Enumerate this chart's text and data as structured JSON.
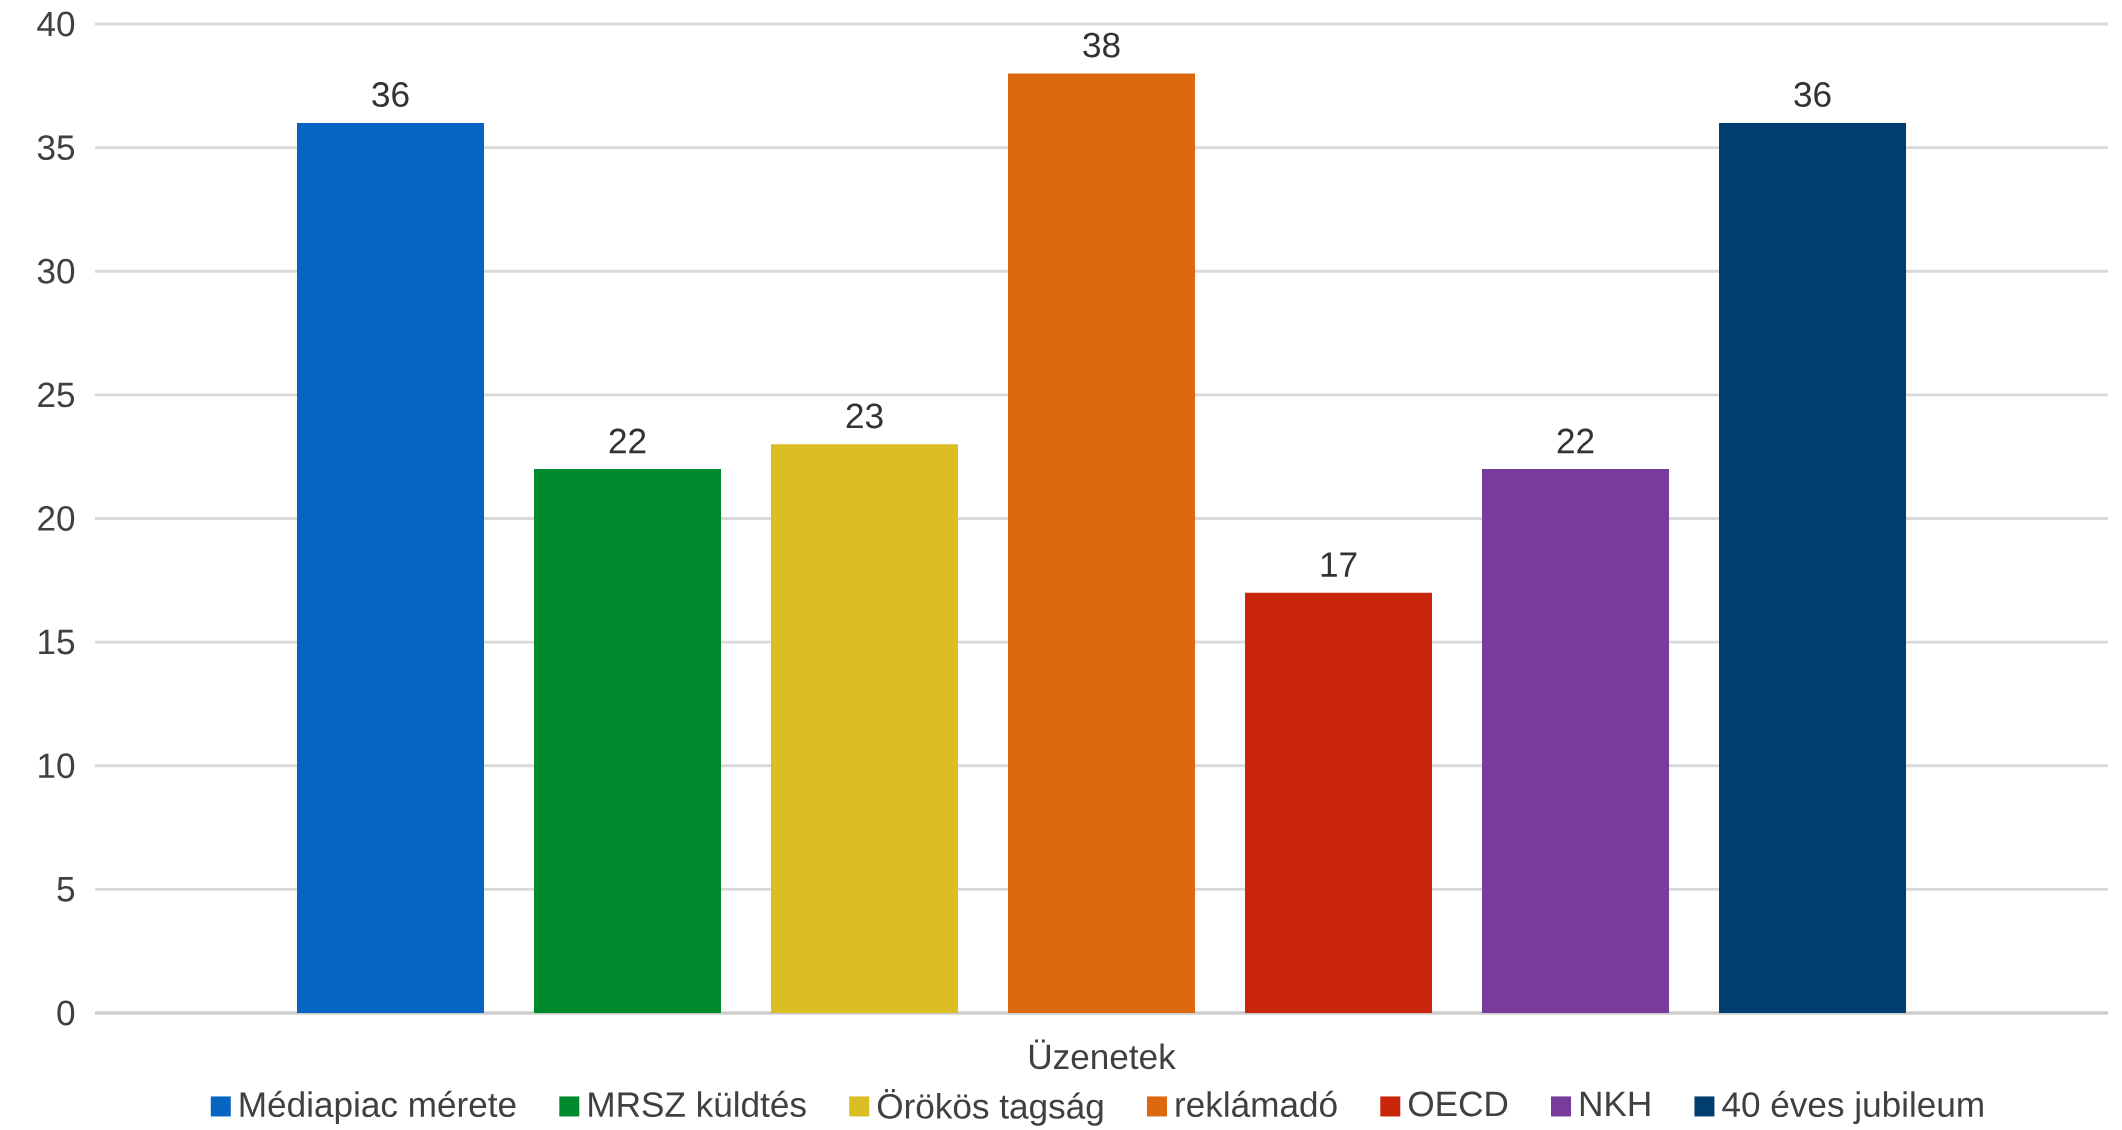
{
  "chart_data": {
    "type": "bar",
    "categories": [
      "Üzenetek"
    ],
    "series": [
      {
        "name": "Médiapiac mérete",
        "color": "#0565c0",
        "values": [
          36
        ]
      },
      {
        "name": "MRSZ küldtés",
        "color": "#008a2e",
        "values": [
          22
        ]
      },
      {
        "name": "Örökös tagság",
        "color": "#dbbd24",
        "values": [
          23
        ]
      },
      {
        "name": "reklámadó",
        "color": "#dc6810",
        "values": [
          38
        ]
      },
      {
        "name": "OECD",
        "color": "#c8250b",
        "values": [
          17
        ]
      },
      {
        "name": "NKH",
        "color": "#783c9a",
        "values": [
          22
        ]
      },
      {
        "name": "40 éves jubileum",
        "color": "#023d70",
        "values": [
          36
        ]
      }
    ],
    "ylim": [
      0,
      40
    ],
    "yticks": [
      0,
      5,
      10,
      15,
      20,
      25,
      30,
      35,
      40
    ],
    "grid": "y",
    "legend": "bottom",
    "data_labels": true
  }
}
